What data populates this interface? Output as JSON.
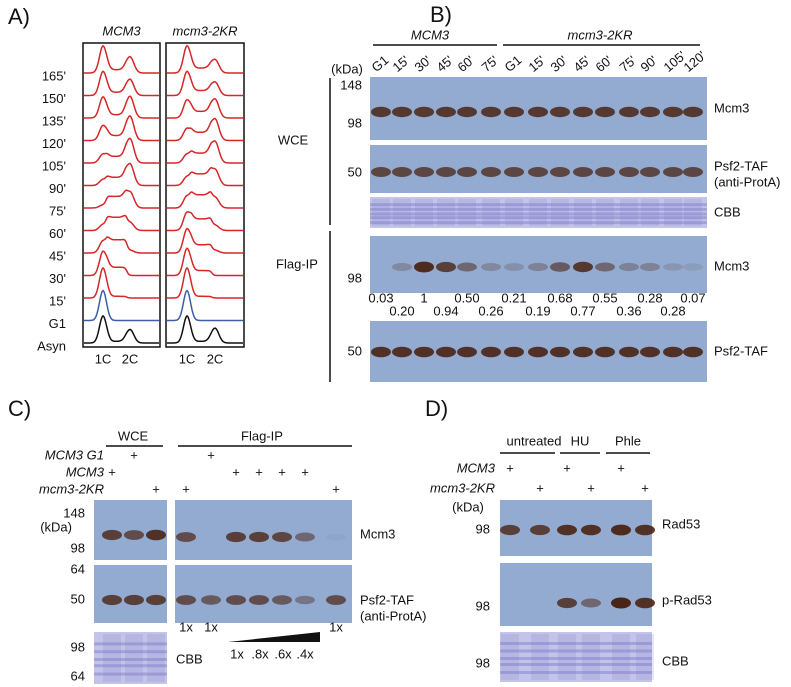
{
  "panel_a": {
    "label": "A)",
    "columns": [
      "MCM3",
      "mcm3-2KR"
    ],
    "timepoints": [
      "165'",
      "150'",
      "135'",
      "120'",
      "105'",
      "90'",
      "75'",
      "60'",
      "45'",
      "30'",
      "15'",
      "G1",
      "Asyn"
    ],
    "x_labels": [
      "1C",
      "2C"
    ]
  },
  "panel_b": {
    "label": "B)",
    "groups": [
      "MCM3",
      "mcm3-2KR"
    ],
    "kda": "(kDa)",
    "lanes": [
      "G1",
      "15'",
      "30'",
      "45'",
      "60'",
      "75'",
      "G1",
      "15'",
      "30'",
      "45'",
      "60'",
      "75'",
      "90'",
      "105'",
      "120'"
    ],
    "sections": [
      "WCE",
      "Flag-IP"
    ],
    "blots": [
      {
        "labels": [
          "Mcm3"
        ],
        "markers": [
          148,
          98
        ]
      },
      {
        "labels": [
          "Psf2-TAF",
          "(anti-ProtA)"
        ],
        "markers": [
          50
        ]
      },
      {
        "labels": [
          "CBB"
        ]
      },
      {
        "labels": [
          "Mcm3"
        ],
        "markers": [
          98
        ]
      },
      {
        "labels": [
          "Psf2-TAF"
        ],
        "markers": [
          50
        ]
      }
    ],
    "quant_row1": [
      "0.03",
      "1",
      "0.50",
      "0.21",
      "0.68",
      "0.55",
      "0.28",
      "0.07"
    ],
    "quant_row2": [
      "0.20",
      "0.94",
      "0.26",
      "0.19",
      "0.77",
      "0.36",
      "0.28"
    ]
  },
  "panel_c": {
    "label": "C)",
    "headers": [
      "WCE",
      "Flag-IP"
    ],
    "kda": "(kDa)",
    "rows": [
      {
        "label": "MCM3 G1",
        "marks": [
          null,
          "+",
          null,
          null,
          "+",
          null,
          null,
          null,
          null,
          null,
          null
        ]
      },
      {
        "label": "MCM3",
        "marks": [
          "+",
          null,
          null,
          null,
          null,
          "+",
          "+",
          "+",
          "+",
          null,
          null
        ]
      },
      {
        "label": "mcm3-2KR",
        "marks": [
          null,
          null,
          "+",
          "+",
          null,
          null,
          null,
          null,
          null,
          null,
          "+"
        ]
      }
    ],
    "blots": [
      {
        "labels": [
          "Mcm3"
        ],
        "markers": [
          148,
          98,
          64
        ]
      },
      {
        "labels": [
          "Psf2-TAF",
          "(anti-ProtA)"
        ],
        "markers": [
          50
        ]
      },
      {
        "labels": [
          "CBB"
        ],
        "markers": [
          98,
          64
        ]
      }
    ],
    "lane_labels": [
      "1x",
      "1x",
      "1x",
      ".8x",
      ".6x",
      ".4x",
      "1x"
    ]
  },
  "panel_d": {
    "label": "D)",
    "headers": [
      "untreated",
      "HU",
      "Phle"
    ],
    "kda": "(kDa)",
    "rows": [
      {
        "label": "MCM3",
        "marks": [
          "+",
          null,
          "+",
          null,
          "+",
          null
        ]
      },
      {
        "label": "mcm3-2KR",
        "marks": [
          null,
          "+",
          null,
          "+",
          null,
          "+"
        ]
      }
    ],
    "blots": [
      {
        "labels": [
          "Rad53"
        ],
        "markers": [
          98
        ]
      },
      {
        "labels": [
          "p-Rad53"
        ],
        "markers": [
          98
        ]
      },
      {
        "labels": [
          "CBB"
        ],
        "markers": [
          98
        ]
      }
    ]
  }
}
